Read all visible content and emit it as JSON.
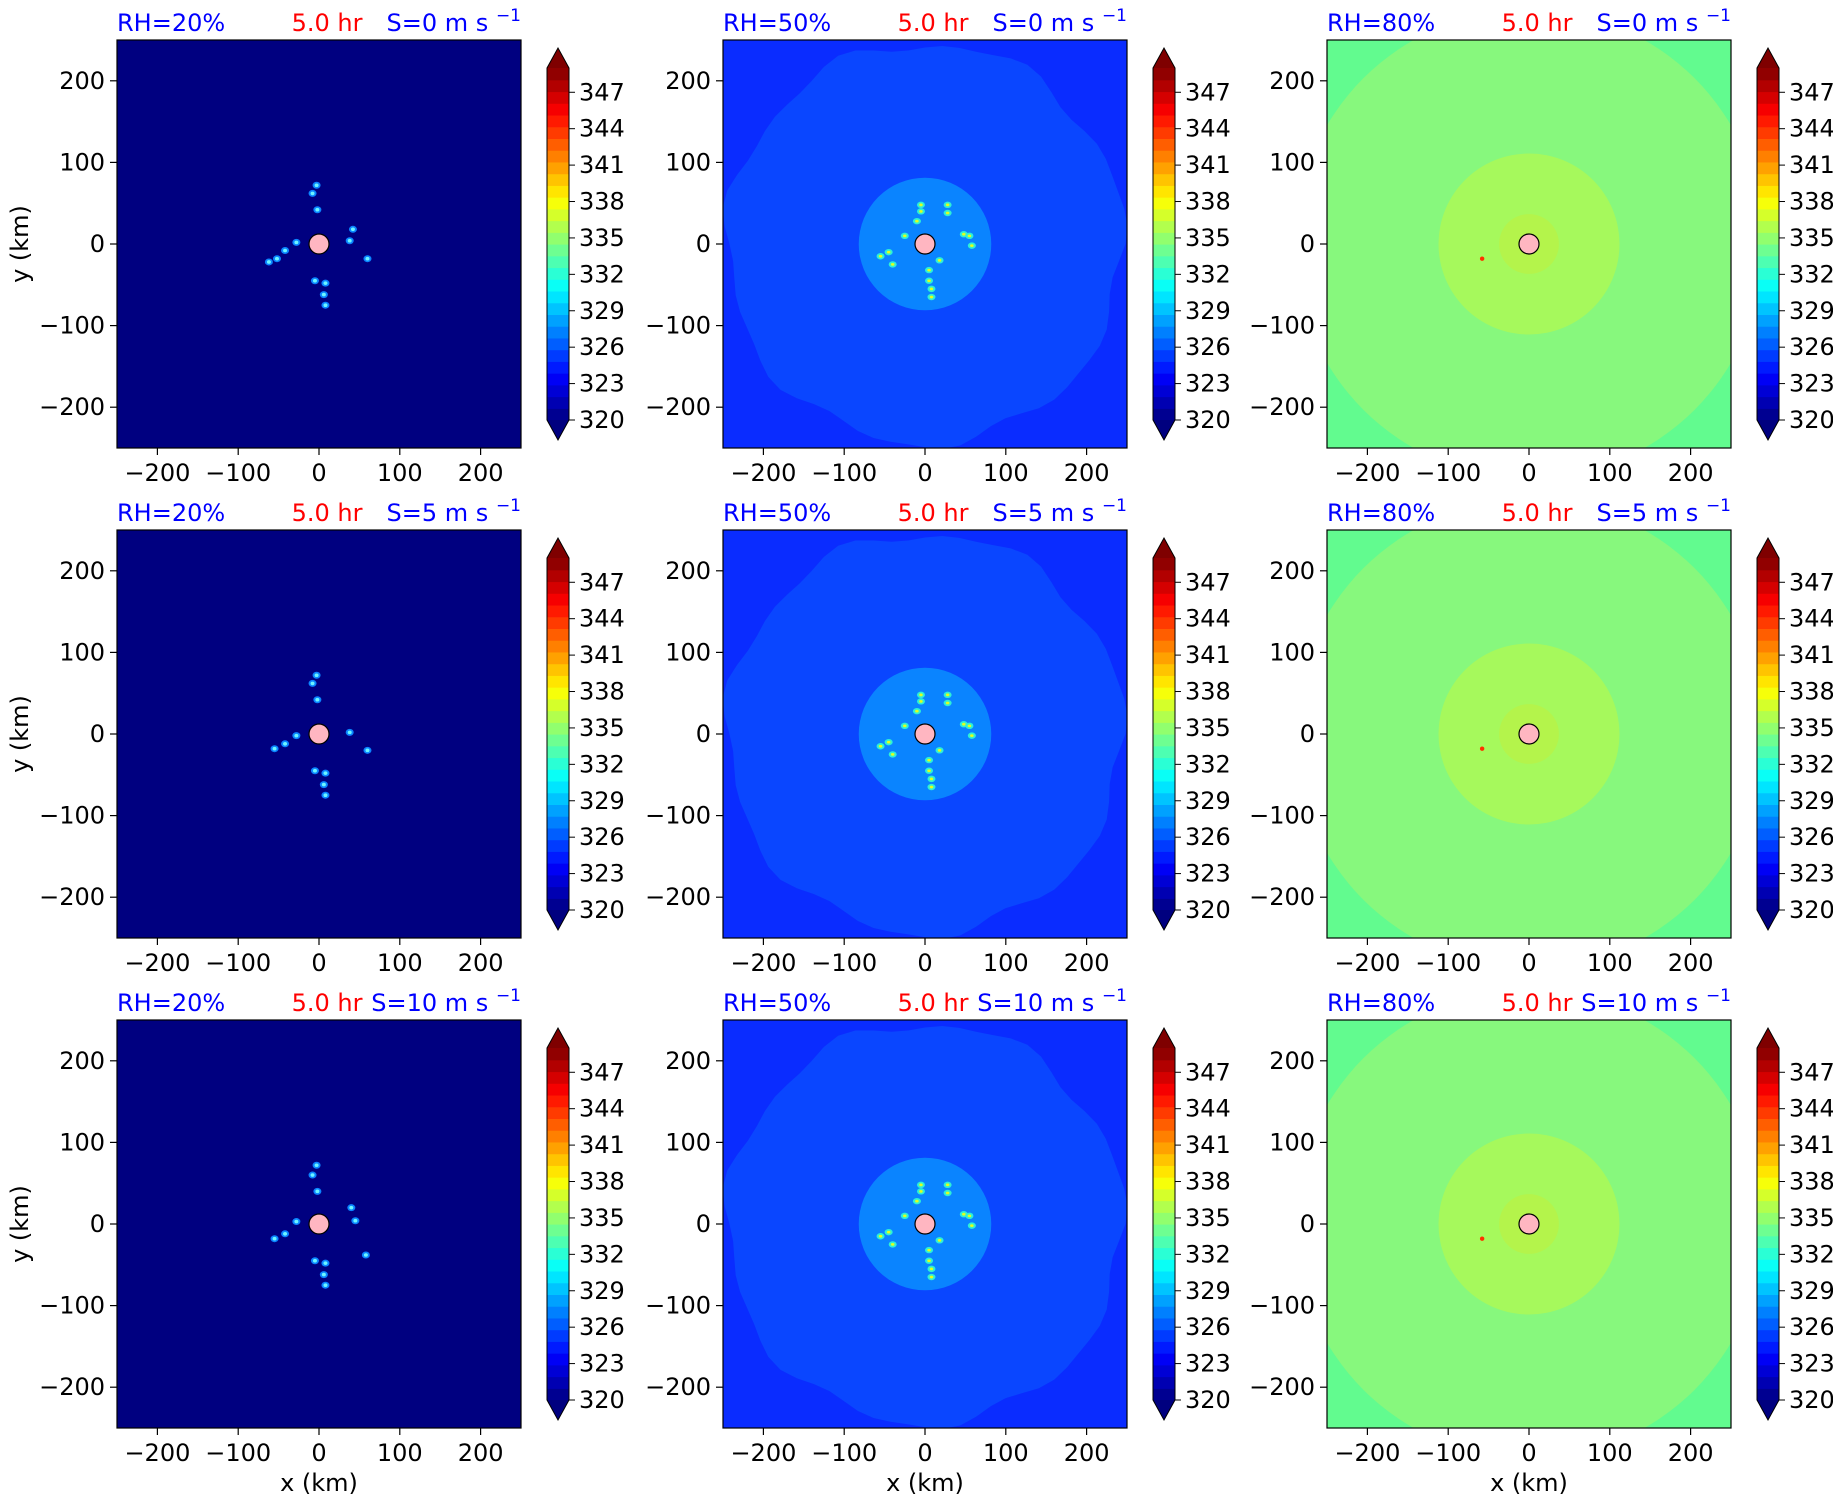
{
  "chart_data": {
    "type": "heatmap",
    "variable_unit": "K",
    "xlabel": "x (km)",
    "ylabel": "y (km)",
    "xlim": [
      -250,
      250
    ],
    "ylim": [
      -250,
      250
    ],
    "xticks": [
      -200,
      -100,
      0,
      100,
      200
    ],
    "yticks": [
      -200,
      -100,
      0,
      100,
      200
    ],
    "tick_labels": [
      "−200",
      "−100",
      "0",
      "100",
      "200"
    ],
    "colorbar": {
      "range": [
        320,
        349
      ],
      "levels": 30,
      "extend": "both",
      "colormap": "jet",
      "ticks": [
        320,
        323,
        326,
        329,
        332,
        335,
        338,
        341,
        344,
        347
      ],
      "tick_labels": [
        "320",
        "323",
        "326",
        "329",
        "332",
        "335",
        "338",
        "341",
        "344",
        "347"
      ]
    },
    "time_label": "5.0 hr",
    "label_colors": {
      "rh": "#0000ff",
      "time": "#ff0000",
      "shear": "#0000ff"
    },
    "center_marker": {
      "x": 0,
      "y": 0,
      "color": "#ffb6c1"
    },
    "rows": [
      {
        "shear": "S=0 m s",
        "shear_exp": "−1"
      },
      {
        "shear": "S=5 m s",
        "shear_exp": "−1"
      },
      {
        "shear": "S=10 m s",
        "shear_exp": "−1"
      }
    ],
    "columns": [
      {
        "rh": "RH=20%",
        "background_value": 320,
        "background_color": "#000080",
        "inner_radius_km": 0,
        "inner_value": null,
        "outer_corner_value": null
      },
      {
        "rh": "RH=50%",
        "background_value": 325,
        "background_color": "#0a46ff",
        "inner_radius_km": 82,
        "inner_value": 327,
        "inner_color": "#0a84ff",
        "outer_shape": "irregular-circle",
        "outer_radius_km": 245
      },
      {
        "rh": "RH=80%",
        "background_value": 334,
        "background_color": "#87f87d",
        "inner_radius_km": 37,
        "inner_value": 336,
        "inner_color": "#b4f44b",
        "middle_radius_km": 112,
        "middle_value": 335,
        "middle_color": "#a6f95c",
        "outer_corner_value": 333,
        "outer_corner_color": "#62fb8f"
      }
    ],
    "convective_cells": [
      [
        {
          "x": -3,
          "y": 72
        },
        {
          "x": -8,
          "y": 62
        },
        {
          "x": -2,
          "y": 42
        },
        {
          "x": -28,
          "y": 2
        },
        {
          "x": -42,
          "y": -8
        },
        {
          "x": -52,
          "y": -18
        },
        {
          "x": -62,
          "y": -22
        },
        {
          "x": -5,
          "y": -45
        },
        {
          "x": 8,
          "y": -48
        },
        {
          "x": 6,
          "y": -62
        },
        {
          "x": 8,
          "y": -75
        },
        {
          "x": 38,
          "y": 4
        },
        {
          "x": 42,
          "y": 18
        },
        {
          "x": 60,
          "y": -18
        }
      ],
      [
        {
          "x": -3,
          "y": 72
        },
        {
          "x": -8,
          "y": 62
        },
        {
          "x": -2,
          "y": 42
        },
        {
          "x": -28,
          "y": -2
        },
        {
          "x": -42,
          "y": -12
        },
        {
          "x": -55,
          "y": -18
        },
        {
          "x": -5,
          "y": -45
        },
        {
          "x": 8,
          "y": -48
        },
        {
          "x": 6,
          "y": -62
        },
        {
          "x": 8,
          "y": -75
        },
        {
          "x": 38,
          "y": 2
        },
        {
          "x": 60,
          "y": -20
        }
      ],
      [
        {
          "x": -3,
          "y": 72
        },
        {
          "x": -8,
          "y": 60
        },
        {
          "x": -2,
          "y": 40
        },
        {
          "x": -28,
          "y": 3
        },
        {
          "x": -42,
          "y": -12
        },
        {
          "x": -55,
          "y": -18
        },
        {
          "x": -5,
          "y": -45
        },
        {
          "x": 8,
          "y": -48
        },
        {
          "x": 6,
          "y": -62
        },
        {
          "x": 8,
          "y": -75
        },
        {
          "x": 40,
          "y": 20
        },
        {
          "x": 45,
          "y": 4
        },
        {
          "x": 58,
          "y": -38
        }
      ]
    ],
    "mid_cells": [
      {
        "x": -55,
        "y": -15
      },
      {
        "x": -45,
        "y": -10
      },
      {
        "x": -40,
        "y": -25
      },
      {
        "x": -25,
        "y": 10
      },
      {
        "x": -10,
        "y": 28
      },
      {
        "x": -5,
        "y": 48
      },
      {
        "x": -5,
        "y": 40
      },
      {
        "x": 28,
        "y": 48
      },
      {
        "x": 28,
        "y": 38
      },
      {
        "x": 48,
        "y": 12
      },
      {
        "x": 55,
        "y": 10
      },
      {
        "x": 58,
        "y": -2
      },
      {
        "x": 5,
        "y": -32
      },
      {
        "x": 5,
        "y": -45
      },
      {
        "x": 8,
        "y": -55
      },
      {
        "x": 8,
        "y": -65
      },
      {
        "x": 18,
        "y": -20
      }
    ],
    "hot_spot": {
      "x": -58,
      "y": -18
    }
  }
}
